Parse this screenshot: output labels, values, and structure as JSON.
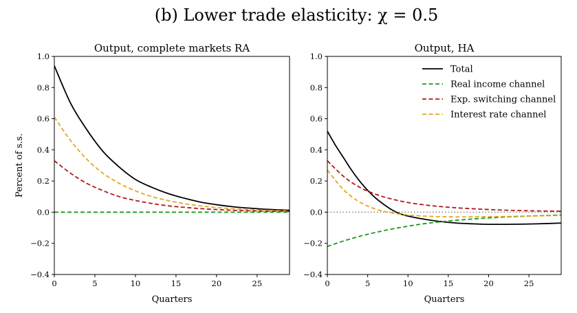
{
  "figure_title": "(b) Lower trade elasticity: χ = 0.5",
  "colors": {
    "total": "#000000",
    "real_income": "#1a9a1a",
    "exp_switching": "#b01818",
    "interest_rate": "#e0a820",
    "zero_line": "#888888"
  },
  "chart_data": [
    {
      "type": "line",
      "title": "Output, complete markets RA",
      "xlabel": "Quarters",
      "ylabel": "Percent of s.s.",
      "xlim": [
        0,
        29
      ],
      "ylim": [
        -0.4,
        1.0
      ],
      "xticks": [
        0,
        5,
        10,
        15,
        20,
        25
      ],
      "yticks": [
        -0.4,
        -0.2,
        0.0,
        0.2,
        0.4,
        0.6,
        0.8,
        1.0
      ],
      "ytick_labels": [
        "−0.4",
        "−0.2",
        "0.0",
        "0.2",
        "0.4",
        "0.6",
        "0.8",
        "1.0"
      ],
      "legend": false,
      "series": [
        {
          "name": "Total",
          "style": "solid",
          "color_key": "total",
          "x": [
            0,
            2,
            4,
            6,
            8,
            10,
            12,
            14,
            16,
            18,
            20,
            22,
            24,
            26,
            29
          ],
          "values": [
            0.94,
            0.7,
            0.53,
            0.39,
            0.29,
            0.21,
            0.16,
            0.12,
            0.09,
            0.065,
            0.048,
            0.035,
            0.026,
            0.019,
            0.012
          ]
        },
        {
          "name": "Interest rate channel",
          "style": "dashed",
          "color_key": "interest_rate",
          "x": [
            0,
            2,
            4,
            6,
            8,
            10,
            12,
            14,
            16,
            18,
            20,
            22,
            24,
            26,
            29
          ],
          "values": [
            0.61,
            0.46,
            0.34,
            0.25,
            0.185,
            0.137,
            0.1,
            0.075,
            0.055,
            0.04,
            0.03,
            0.022,
            0.016,
            0.012,
            0.008
          ]
        },
        {
          "name": "Exp. switching channel",
          "style": "dashed",
          "color_key": "exp_switching",
          "x": [
            0,
            2,
            4,
            6,
            8,
            10,
            12,
            14,
            16,
            18,
            20,
            22,
            24,
            26,
            29
          ],
          "values": [
            0.33,
            0.25,
            0.185,
            0.138,
            0.1,
            0.075,
            0.056,
            0.041,
            0.031,
            0.023,
            0.017,
            0.012,
            0.009,
            0.007,
            0.004
          ]
        },
        {
          "name": "Real income channel",
          "style": "dashed",
          "color_key": "real_income",
          "x": [
            0,
            29
          ],
          "values": [
            0.0,
            0.0
          ]
        }
      ]
    },
    {
      "type": "line",
      "title": "Output, HA",
      "xlabel": "Quarters",
      "ylabel": "",
      "xlim": [
        0,
        29
      ],
      "ylim": [
        -0.4,
        1.0
      ],
      "xticks": [
        0,
        5,
        10,
        15,
        20,
        25
      ],
      "yticks": [
        -0.4,
        -0.2,
        0.0,
        0.2,
        0.4,
        0.6,
        0.8,
        1.0
      ],
      "ytick_labels": [
        "−0.4",
        "−0.2",
        "0.0",
        "0.2",
        "0.4",
        "0.6",
        "0.8",
        "1.0"
      ],
      "legend": true,
      "legend_position": "top-right",
      "zero_line": "dotted",
      "series": [
        {
          "name": "Total",
          "style": "solid",
          "color_key": "total",
          "x": [
            0,
            1,
            2,
            3,
            4,
            5,
            6,
            7,
            8,
            9,
            10,
            12,
            14,
            16,
            18,
            20,
            22,
            24,
            26,
            29
          ],
          "values": [
            0.52,
            0.43,
            0.35,
            0.27,
            0.2,
            0.14,
            0.09,
            0.05,
            0.015,
            -0.01,
            -0.025,
            -0.045,
            -0.06,
            -0.07,
            -0.075,
            -0.078,
            -0.078,
            -0.077,
            -0.075,
            -0.07
          ]
        },
        {
          "name": "Real income channel",
          "style": "dashed",
          "color_key": "real_income",
          "x": [
            0,
            2,
            4,
            6,
            8,
            10,
            12,
            14,
            16,
            18,
            20,
            22,
            24,
            26,
            29
          ],
          "values": [
            -0.22,
            -0.185,
            -0.155,
            -0.13,
            -0.108,
            -0.09,
            -0.074,
            -0.062,
            -0.052,
            -0.044,
            -0.037,
            -0.031,
            -0.027,
            -0.023,
            -0.018
          ]
        },
        {
          "name": "Exp. switching channel",
          "style": "dashed",
          "color_key": "exp_switching",
          "x": [
            0,
            2,
            4,
            6,
            8,
            10,
            12,
            14,
            16,
            18,
            20,
            22,
            24,
            26,
            29
          ],
          "values": [
            0.33,
            0.23,
            0.16,
            0.115,
            0.084,
            0.062,
            0.047,
            0.036,
            0.028,
            0.022,
            0.017,
            0.013,
            0.01,
            0.008,
            0.006
          ]
        },
        {
          "name": "Interest rate channel",
          "style": "dashed",
          "color_key": "interest_rate",
          "x": [
            0,
            2,
            4,
            6,
            8,
            10,
            12,
            14,
            16,
            18,
            20,
            22,
            24,
            26,
            29
          ],
          "values": [
            0.27,
            0.145,
            0.065,
            0.02,
            -0.005,
            -0.018,
            -0.025,
            -0.029,
            -0.03,
            -0.03,
            -0.029,
            -0.028,
            -0.026,
            -0.024,
            -0.021
          ]
        }
      ]
    }
  ]
}
